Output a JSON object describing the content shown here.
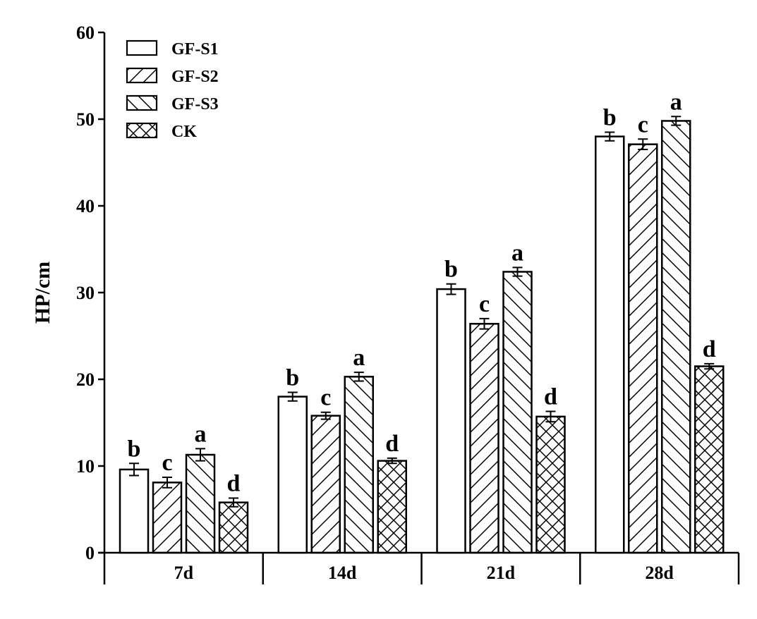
{
  "chart_data": {
    "type": "bar",
    "title": "",
    "xlabel": "",
    "ylabel": "HP/cm",
    "ylim": [
      0,
      60
    ],
    "yticks": [
      "0",
      "10",
      "20",
      "30",
      "40",
      "50",
      "60"
    ],
    "categories": [
      "7d",
      "14d",
      "21d",
      "28d"
    ],
    "legend_position": "top-left",
    "series": [
      {
        "name": "GF-S1",
        "pattern": "none",
        "values": [
          9.6,
          18.0,
          30.4,
          48.0
        ],
        "errors": [
          0.7,
          0.5,
          0.6,
          0.5
        ],
        "letters": [
          "b",
          "b",
          "b",
          "b"
        ]
      },
      {
        "name": "GF-S2",
        "pattern": "forward-diagonal",
        "values": [
          8.1,
          15.8,
          26.4,
          47.1
        ],
        "errors": [
          0.6,
          0.4,
          0.6,
          0.6
        ],
        "letters": [
          "c",
          "c",
          "c",
          "c"
        ]
      },
      {
        "name": "GF-S3",
        "pattern": "backward-diagonal",
        "values": [
          11.3,
          20.3,
          32.4,
          49.8
        ],
        "errors": [
          0.7,
          0.5,
          0.5,
          0.5
        ],
        "letters": [
          "a",
          "a",
          "a",
          "a"
        ]
      },
      {
        "name": "CK",
        "pattern": "crosshatch",
        "values": [
          5.8,
          10.6,
          15.7,
          21.5
        ],
        "errors": [
          0.5,
          0.3,
          0.6,
          0.3
        ],
        "letters": [
          "d",
          "d",
          "d",
          "d"
        ]
      }
    ]
  }
}
